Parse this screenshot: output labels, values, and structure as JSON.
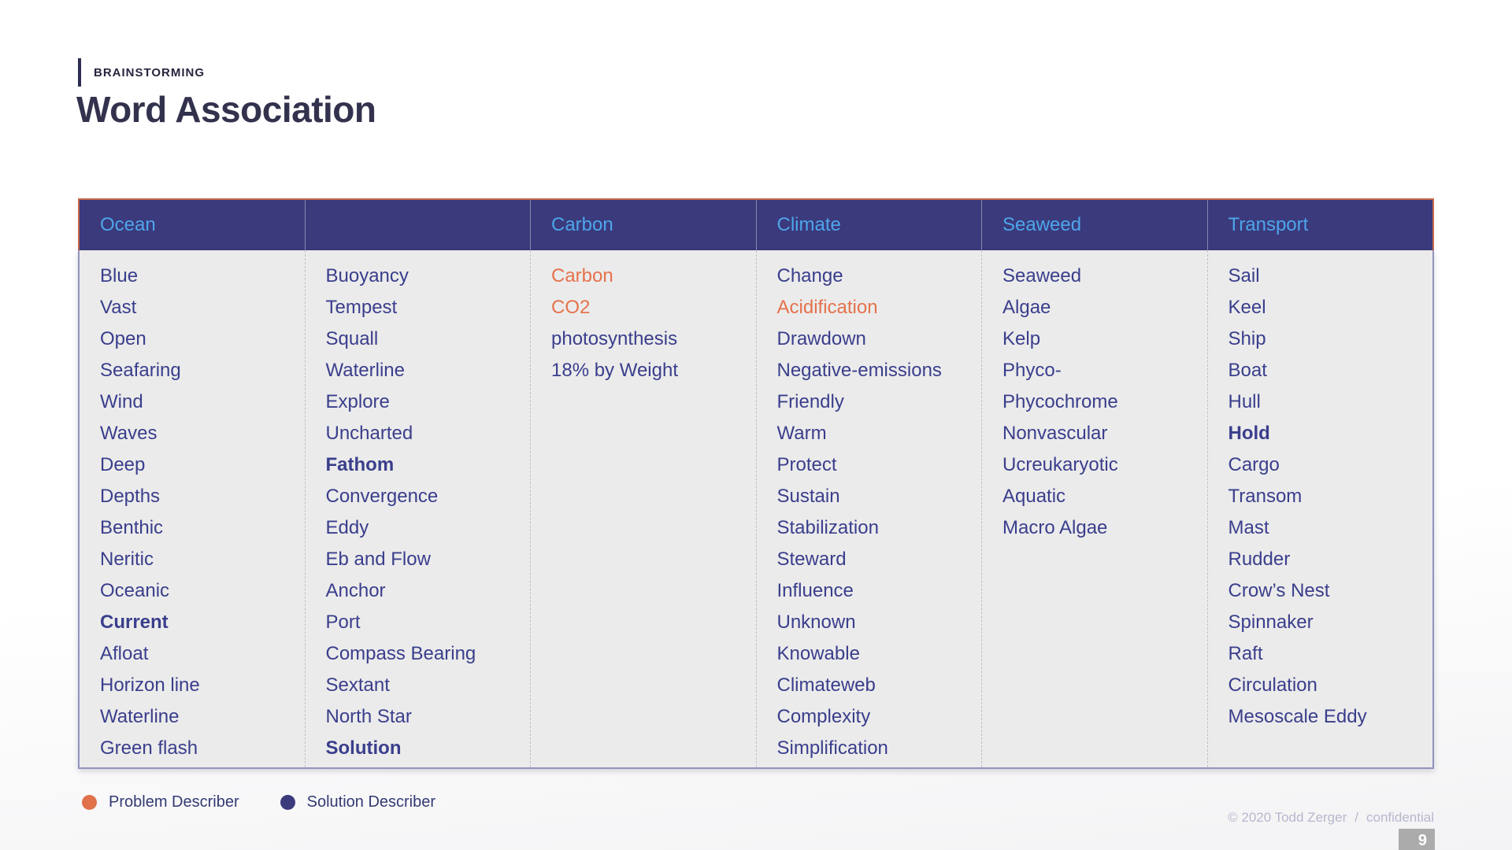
{
  "page": {
    "eyebrow": "BRAINSTORMING",
    "title": "Word Association"
  },
  "table": {
    "columns": [
      {
        "id": "ocean",
        "header": "Ocean",
        "items": [
          {
            "text": "Blue"
          },
          {
            "text": "Vast"
          },
          {
            "text": "Open"
          },
          {
            "text": "Seafaring"
          },
          {
            "text": "Wind"
          },
          {
            "text": "Waves"
          },
          {
            "text": "Deep"
          },
          {
            "text": "Depths"
          },
          {
            "text": "Benthic"
          },
          {
            "text": "Neritic"
          },
          {
            "text": "Oceanic"
          },
          {
            "text": "Current",
            "style": "bold"
          },
          {
            "text": "Afloat"
          },
          {
            "text": "Horizon line"
          },
          {
            "text": "Waterline"
          },
          {
            "text": "Green flash"
          }
        ]
      },
      {
        "id": "nautical",
        "header": "",
        "items": [
          {
            "text": "Buoyancy"
          },
          {
            "text": "Tempest"
          },
          {
            "text": "Squall"
          },
          {
            "text": "Waterline"
          },
          {
            "text": "Explore"
          },
          {
            "text": "Uncharted"
          },
          {
            "text": "Fathom",
            "style": "bold"
          },
          {
            "text": "Convergence"
          },
          {
            "text": "Eddy"
          },
          {
            "text": "Eb and Flow"
          },
          {
            "text": "Anchor"
          },
          {
            "text": "Port"
          },
          {
            "text": "Compass Bearing"
          },
          {
            "text": "Sextant"
          },
          {
            "text": "North Star"
          },
          {
            "text": "Solution",
            "style": "bold"
          }
        ]
      },
      {
        "id": "carbon",
        "header": "Carbon",
        "items": [
          {
            "text": "Carbon",
            "style": "problem"
          },
          {
            "text": "CO2",
            "style": "problem"
          },
          {
            "text": "photosynthesis"
          },
          {
            "text": "18% by Weight"
          }
        ]
      },
      {
        "id": "climate",
        "header": "Climate",
        "items": [
          {
            "text": "Change"
          },
          {
            "text": "Acidification",
            "style": "problem"
          },
          {
            "text": "Drawdown"
          },
          {
            "text": "Negative-emissions"
          },
          {
            "text": "Friendly"
          },
          {
            "text": "Warm"
          },
          {
            "text": "Protect"
          },
          {
            "text": "Sustain"
          },
          {
            "text": "Stabilization"
          },
          {
            "text": "Steward"
          },
          {
            "text": "Influence"
          },
          {
            "text": "Unknown"
          },
          {
            "text": "Knowable"
          },
          {
            "text": "Climateweb"
          },
          {
            "text": "Complexity"
          },
          {
            "text": "Simplification"
          }
        ]
      },
      {
        "id": "seaweed",
        "header": "Seaweed",
        "items": [
          {
            "text": "Seaweed"
          },
          {
            "text": "Algae"
          },
          {
            "text": "Kelp"
          },
          {
            "text": "Phyco-"
          },
          {
            "text": "Phycochrome"
          },
          {
            "text": "Nonvascular"
          },
          {
            "text": "Ucreukaryotic"
          },
          {
            "text": "Aquatic"
          },
          {
            "text": "Macro Algae"
          }
        ]
      },
      {
        "id": "transport",
        "header": "Transport",
        "items": [
          {
            "text": "Sail"
          },
          {
            "text": "Keel"
          },
          {
            "text": "Ship"
          },
          {
            "text": "Boat"
          },
          {
            "text": "Hull"
          },
          {
            "text": "Hold",
            "style": "bold"
          },
          {
            "text": "Cargo"
          },
          {
            "text": "Transom"
          },
          {
            "text": "Mast"
          },
          {
            "text": "Rudder"
          },
          {
            "text": "Crow’s Nest"
          },
          {
            "text": "Spinnaker"
          },
          {
            "text": "Raft"
          },
          {
            "text": "Circulation"
          },
          {
            "text": "Mesoscale Eddy"
          }
        ]
      }
    ]
  },
  "legend": {
    "items": [
      {
        "id": "problem",
        "label": "Problem Describer",
        "color": "#e0714b"
      },
      {
        "id": "solution",
        "label": "Solution Describer",
        "color": "#3a3a7c"
      }
    ]
  },
  "footer": {
    "copyright": "© 2020 Todd Zerger",
    "separator": "/",
    "confidential": "confidential",
    "page_number": "9"
  },
  "colors": {
    "header_bg": "#3a3a7c",
    "header_text": "#4ea5ea",
    "header_border": "#c2684d",
    "body_bg": "#ebebeb",
    "body_text": "#3a3e8c",
    "problem_text": "#e5724c",
    "body_border": "#9393c0",
    "title_text": "#32324e",
    "footer_text": "#b7b7cd",
    "badge_bg": "#ababab"
  }
}
